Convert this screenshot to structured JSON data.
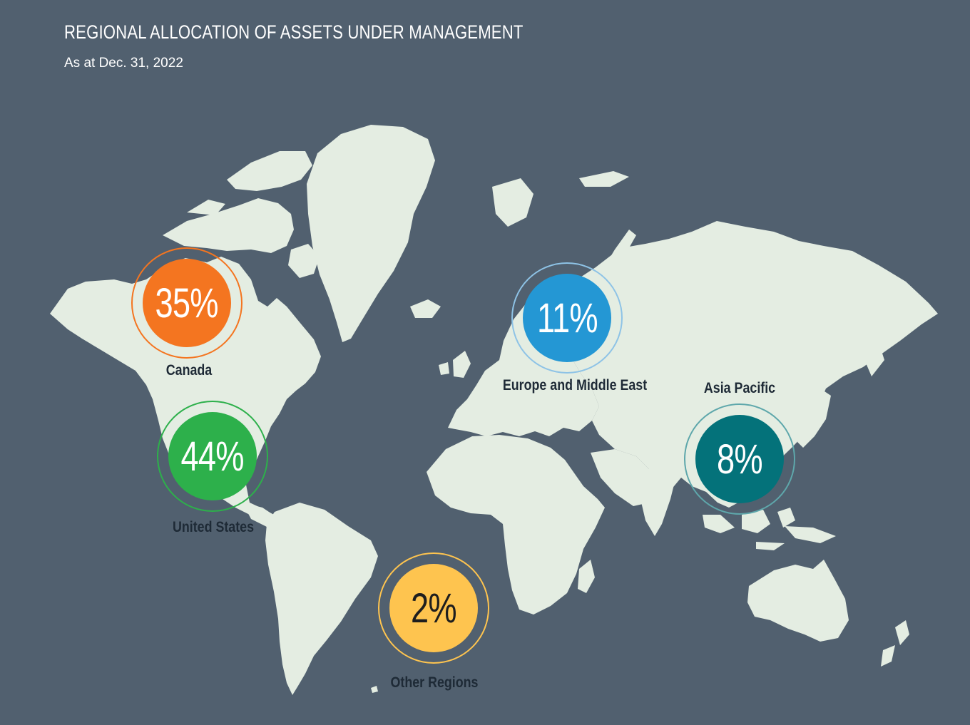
{
  "header": {
    "title": "REGIONAL ALLOCATION OF ASSETS UNDER MANAGEMENT",
    "subtitle": "As at Dec. 31, 2022"
  },
  "regions": [
    {
      "name": "Canada",
      "percent_label": "35%",
      "value": 35,
      "fill": "#f47520",
      "ring": "#f47520",
      "text": "#ffffff"
    },
    {
      "name": "United States",
      "percent_label": "44%",
      "value": 44,
      "fill": "#2db04b",
      "ring": "#2db04b",
      "text": "#ffffff"
    },
    {
      "name": "Europe and Middle East",
      "percent_label": "11%",
      "value": 11,
      "fill": "#2497d4",
      "ring": "#8ec3e6",
      "text": "#ffffff"
    },
    {
      "name": "Asia Pacific",
      "percent_label": "8%",
      "value": 8,
      "fill": "#04727a",
      "ring": "#5ea7ab",
      "text": "#ffffff"
    },
    {
      "name": "Other Regions",
      "percent_label": "2%",
      "value": 2,
      "fill": "#fec44f",
      "ring": "#fec44f",
      "text": "#1e1e1e"
    }
  ],
  "colors": {
    "background": "#51606f",
    "land": "#e4ede2",
    "label_text": "#1e2a36"
  }
}
